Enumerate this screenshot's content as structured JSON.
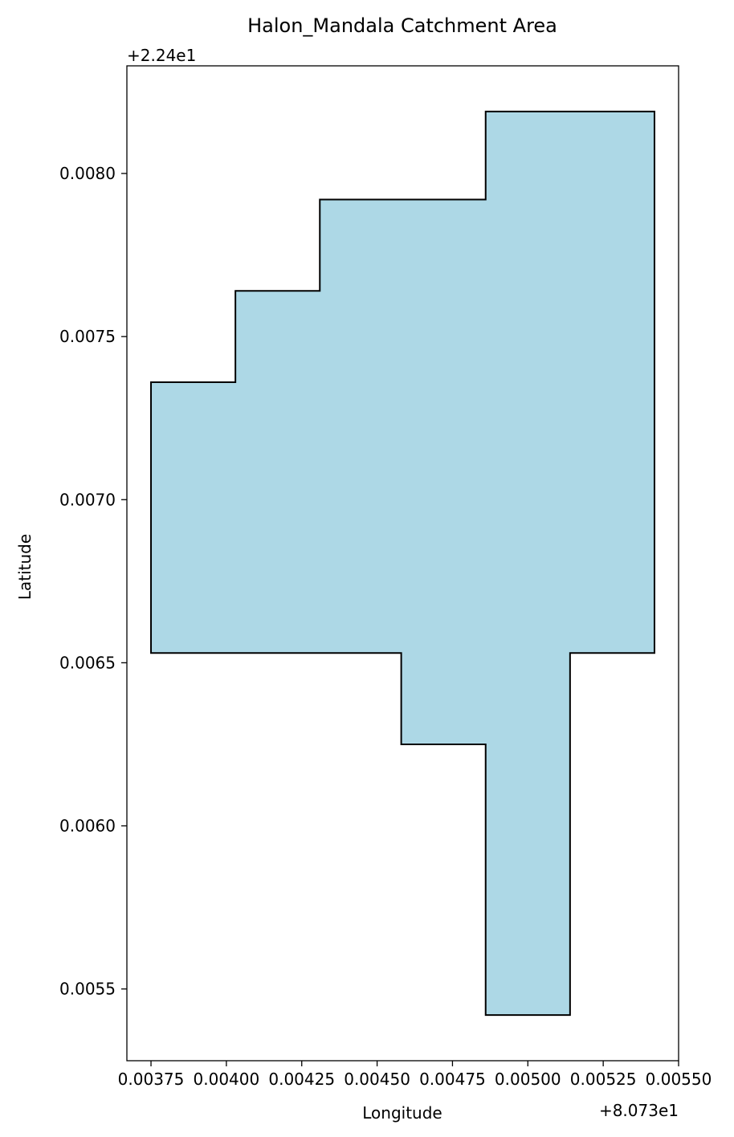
{
  "chart_data": {
    "type": "area",
    "title": "Halon_Mandala Catchment Area",
    "xlabel": "Longitude",
    "ylabel": "Latitude",
    "x_offset_label": "+8.073e1",
    "y_offset_label": "+2.24e1",
    "xlim": [
      0.00367,
      0.0055
    ],
    "ylim": [
      0.00528,
      0.00833
    ],
    "xticks": [
      0.00375,
      0.004,
      0.00425,
      0.0045,
      0.00475,
      0.005,
      0.00525,
      0.0055
    ],
    "xtick_labels": [
      "0.00375",
      "0.00400",
      "0.00425",
      "0.00450",
      "0.00475",
      "0.00500",
      "0.00525",
      "0.00550"
    ],
    "yticks": [
      0.0055,
      0.006,
      0.0065,
      0.007,
      0.0075,
      0.008
    ],
    "ytick_labels": [
      "0.0055",
      "0.0060",
      "0.0065",
      "0.0070",
      "0.0075",
      "0.0080"
    ],
    "grid": false,
    "fill_color": "#add8e6",
    "edge_color": "#000000",
    "polygon": {
      "x": [
        0.00375,
        0.00403,
        0.00403,
        0.00431,
        0.00431,
        0.00486,
        0.00486,
        0.00542,
        0.00542,
        0.00514,
        0.00514,
        0.00486,
        0.00486,
        0.00458,
        0.00458,
        0.00375
      ],
      "y": [
        0.00736,
        0.00736,
        0.00764,
        0.00764,
        0.00792,
        0.00792,
        0.00819,
        0.00819,
        0.00653,
        0.00653,
        0.00542,
        0.00542,
        0.00625,
        0.00625,
        0.00653,
        0.00653
      ]
    }
  }
}
